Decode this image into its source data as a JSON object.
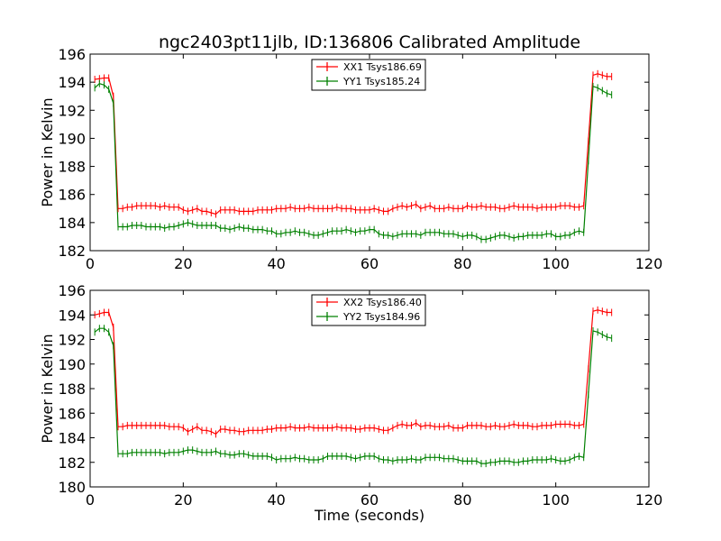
{
  "figure_title": "ngc2403pt11jlb, ID:136806 Calibrated Amplitude",
  "chart_data": [
    {
      "type": "line",
      "title": "ngc2403pt11jlb, ID:136806 Calibrated Amplitude",
      "xlabel": "",
      "ylabel": "Power in Kelvin",
      "xlim": [
        0,
        120
      ],
      "ylim": [
        182,
        196
      ],
      "xticks": [
        "0",
        "20",
        "40",
        "60",
        "80",
        "100",
        "120"
      ],
      "yticks": [
        "182",
        "184",
        "186",
        "188",
        "190",
        "192",
        "194",
        "196"
      ],
      "grid": false,
      "legend_position": "top-center",
      "x": [
        1,
        2,
        3,
        4,
        5,
        6,
        7,
        8,
        9,
        10,
        11,
        12,
        13,
        14,
        15,
        16,
        17,
        18,
        19,
        20,
        21,
        22,
        23,
        24,
        25,
        26,
        27,
        28,
        29,
        30,
        31,
        32,
        33,
        34,
        35,
        36,
        37,
        38,
        39,
        40,
        41,
        42,
        43,
        44,
        45,
        46,
        47,
        48,
        49,
        50,
        51,
        52,
        53,
        54,
        55,
        56,
        57,
        58,
        59,
        60,
        61,
        62,
        63,
        64,
        65,
        66,
        67,
        68,
        69,
        70,
        71,
        72,
        73,
        74,
        75,
        76,
        77,
        78,
        79,
        80,
        81,
        82,
        83,
        84,
        85,
        86,
        87,
        88,
        89,
        90,
        91,
        92,
        93,
        94,
        95,
        96,
        97,
        98,
        99,
        100,
        101,
        102,
        103,
        104,
        105,
        106,
        107,
        108,
        109,
        110,
        111,
        112
      ],
      "series": [
        {
          "name": "XX1 Tsys186.69",
          "color": "#ff0000",
          "values": [
            194.2,
            194.25,
            194.3,
            194.3,
            193.0,
            185.0,
            185.0,
            185.1,
            185.1,
            185.2,
            185.2,
            185.2,
            185.2,
            185.2,
            185.1,
            185.2,
            185.1,
            185.1,
            185.1,
            184.9,
            184.8,
            184.9,
            185.0,
            184.8,
            184.8,
            184.7,
            184.6,
            184.9,
            184.9,
            184.9,
            184.9,
            184.8,
            184.8,
            184.8,
            184.8,
            184.9,
            184.9,
            184.9,
            184.9,
            185.0,
            185.0,
            185.0,
            185.1,
            185.0,
            185.0,
            185.0,
            185.1,
            185.0,
            185.0,
            185.0,
            185.0,
            185.0,
            185.1,
            185.0,
            185.0,
            185.0,
            184.9,
            184.9,
            184.9,
            184.9,
            185.0,
            184.9,
            184.8,
            184.8,
            185.0,
            185.1,
            185.2,
            185.1,
            185.2,
            185.3,
            185.0,
            185.1,
            185.2,
            185.0,
            185.0,
            185.0,
            185.1,
            185.0,
            185.0,
            185.0,
            185.2,
            185.1,
            185.1,
            185.2,
            185.1,
            185.1,
            185.1,
            185.0,
            185.0,
            185.1,
            185.2,
            185.1,
            185.1,
            185.1,
            185.1,
            185.0,
            185.1,
            185.1,
            185.1,
            185.1,
            185.2,
            185.2,
            185.2,
            185.1,
            185.1,
            185.2,
            189.8,
            194.5,
            194.6,
            194.5,
            194.4,
            194.4
          ]
        },
        {
          "name": "YY1 Tsys185.24",
          "color": "#008000",
          "values": [
            193.6,
            193.9,
            193.8,
            193.5,
            192.5,
            183.7,
            183.7,
            183.7,
            183.8,
            183.8,
            183.8,
            183.7,
            183.7,
            183.7,
            183.7,
            183.6,
            183.7,
            183.7,
            183.8,
            183.9,
            184.0,
            183.9,
            183.8,
            183.8,
            183.8,
            183.8,
            183.8,
            183.6,
            183.6,
            183.5,
            183.6,
            183.7,
            183.6,
            183.6,
            183.5,
            183.5,
            183.5,
            183.4,
            183.4,
            183.2,
            183.2,
            183.3,
            183.3,
            183.4,
            183.3,
            183.3,
            183.2,
            183.1,
            183.1,
            183.2,
            183.3,
            183.4,
            183.4,
            183.4,
            183.5,
            183.4,
            183.3,
            183.4,
            183.4,
            183.5,
            183.5,
            183.2,
            183.1,
            183.1,
            183.0,
            183.1,
            183.2,
            183.2,
            183.2,
            183.2,
            183.1,
            183.3,
            183.3,
            183.3,
            183.3,
            183.2,
            183.2,
            183.2,
            183.1,
            183.0,
            183.1,
            183.1,
            183.0,
            182.8,
            182.8,
            182.9,
            183.0,
            183.1,
            183.1,
            183.0,
            182.9,
            183.0,
            183.0,
            183.1,
            183.1,
            183.1,
            183.1,
            183.2,
            183.2,
            183.0,
            183.0,
            183.1,
            183.1,
            183.3,
            183.4,
            183.3,
            188.4,
            193.7,
            193.6,
            193.4,
            193.2,
            193.1
          ]
        }
      ]
    },
    {
      "type": "line",
      "title": "",
      "xlabel": "Time (seconds)",
      "ylabel": "Power in Kelvin",
      "xlim": [
        0,
        120
      ],
      "ylim": [
        180,
        196
      ],
      "xticks": [
        "0",
        "20",
        "40",
        "60",
        "80",
        "100",
        "120"
      ],
      "yticks": [
        "180",
        "182",
        "184",
        "186",
        "188",
        "190",
        "192",
        "194",
        "196"
      ],
      "grid": false,
      "legend_position": "top-center",
      "x": [
        1,
        2,
        3,
        4,
        5,
        6,
        7,
        8,
        9,
        10,
        11,
        12,
        13,
        14,
        15,
        16,
        17,
        18,
        19,
        20,
        21,
        22,
        23,
        24,
        25,
        26,
        27,
        28,
        29,
        30,
        31,
        32,
        33,
        34,
        35,
        36,
        37,
        38,
        39,
        40,
        41,
        42,
        43,
        44,
        45,
        46,
        47,
        48,
        49,
        50,
        51,
        52,
        53,
        54,
        55,
        56,
        57,
        58,
        59,
        60,
        61,
        62,
        63,
        64,
        65,
        66,
        67,
        68,
        69,
        70,
        71,
        72,
        73,
        74,
        75,
        76,
        77,
        78,
        79,
        80,
        81,
        82,
        83,
        84,
        85,
        86,
        87,
        88,
        89,
        90,
        91,
        92,
        93,
        94,
        95,
        96,
        97,
        98,
        99,
        100,
        101,
        102,
        103,
        104,
        105,
        106,
        107,
        108,
        109,
        110,
        111,
        112
      ],
      "series": [
        {
          "name": "XX2 Tsys186.40",
          "color": "#ff0000",
          "values": [
            194.0,
            194.1,
            194.2,
            194.2,
            193.0,
            184.9,
            184.9,
            185.0,
            185.0,
            185.0,
            185.0,
            185.0,
            185.0,
            185.0,
            185.0,
            185.0,
            184.9,
            184.9,
            184.9,
            184.8,
            184.5,
            184.7,
            184.9,
            184.6,
            184.6,
            184.5,
            184.3,
            184.7,
            184.7,
            184.6,
            184.6,
            184.5,
            184.5,
            184.6,
            184.6,
            184.6,
            184.6,
            184.7,
            184.7,
            184.8,
            184.8,
            184.8,
            184.9,
            184.8,
            184.8,
            184.8,
            184.9,
            184.8,
            184.8,
            184.8,
            184.8,
            184.8,
            184.9,
            184.8,
            184.8,
            184.8,
            184.7,
            184.7,
            184.8,
            184.8,
            184.8,
            184.7,
            184.6,
            184.6,
            184.8,
            185.0,
            185.1,
            185.0,
            185.0,
            185.2,
            184.9,
            185.0,
            185.0,
            184.9,
            184.9,
            184.9,
            185.0,
            184.8,
            184.8,
            184.8,
            185.0,
            185.0,
            185.0,
            185.0,
            184.9,
            184.9,
            185.0,
            184.9,
            184.9,
            185.0,
            185.1,
            185.0,
            185.0,
            185.0,
            184.9,
            184.9,
            185.0,
            185.0,
            185.0,
            185.1,
            185.1,
            185.1,
            185.1,
            185.0,
            185.0,
            185.1,
            189.6,
            194.3,
            194.4,
            194.3,
            194.2,
            194.2
          ]
        },
        {
          "name": "YY2 Tsys184.96",
          "color": "#008000",
          "values": [
            192.6,
            192.9,
            192.9,
            192.6,
            191.5,
            182.7,
            182.7,
            182.7,
            182.8,
            182.8,
            182.8,
            182.8,
            182.8,
            182.8,
            182.8,
            182.7,
            182.8,
            182.8,
            182.8,
            182.9,
            183.0,
            183.0,
            182.9,
            182.8,
            182.8,
            182.8,
            182.9,
            182.7,
            182.7,
            182.6,
            182.6,
            182.7,
            182.7,
            182.6,
            182.5,
            182.5,
            182.5,
            182.5,
            182.4,
            182.2,
            182.3,
            182.3,
            182.3,
            182.4,
            182.3,
            182.3,
            182.2,
            182.2,
            182.2,
            182.3,
            182.5,
            182.5,
            182.5,
            182.5,
            182.5,
            182.4,
            182.3,
            182.4,
            182.5,
            182.5,
            182.5,
            182.3,
            182.2,
            182.2,
            182.1,
            182.2,
            182.2,
            182.2,
            182.3,
            182.2,
            182.2,
            182.4,
            182.4,
            182.4,
            182.4,
            182.3,
            182.3,
            182.3,
            182.2,
            182.1,
            182.1,
            182.1,
            182.1,
            181.9,
            181.9,
            182.0,
            182.0,
            182.1,
            182.1,
            182.1,
            182.0,
            182.0,
            182.1,
            182.1,
            182.2,
            182.2,
            182.2,
            182.2,
            182.3,
            182.2,
            182.1,
            182.1,
            182.2,
            182.4,
            182.5,
            182.4,
            187.5,
            192.7,
            192.6,
            192.4,
            192.2,
            192.1
          ]
        }
      ]
    }
  ]
}
